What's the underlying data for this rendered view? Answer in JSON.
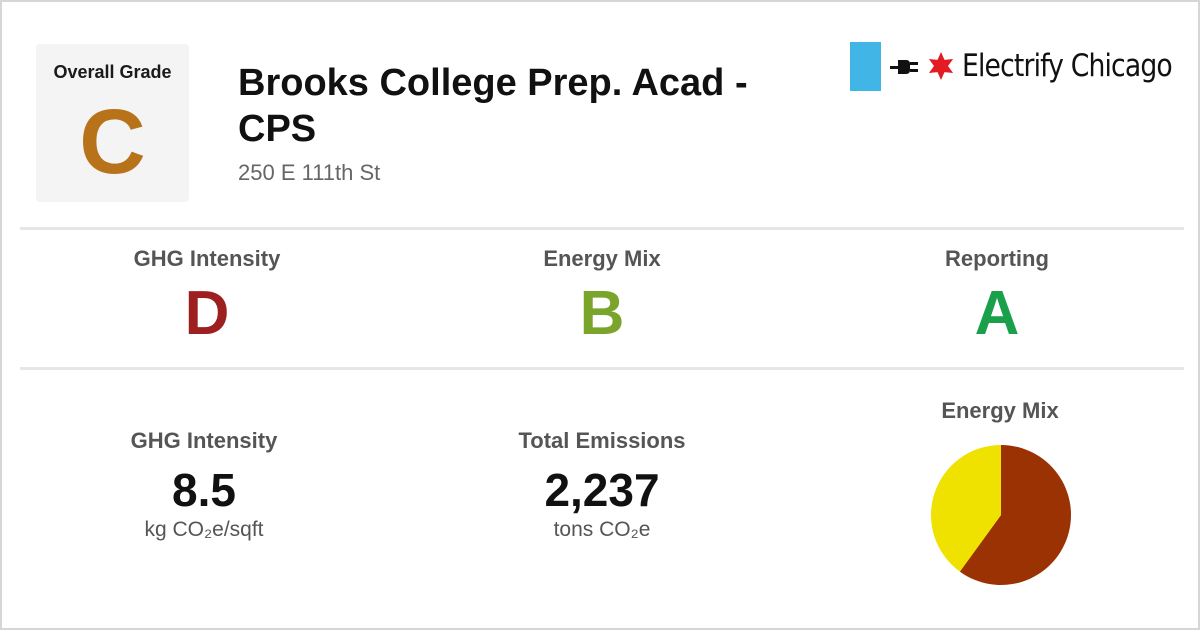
{
  "overall": {
    "label": "Overall Grade",
    "grade": "C",
    "color": "#b8721a"
  },
  "building": {
    "name": "Brooks College Prep. Acad - CPS",
    "address": "250 E 111th St"
  },
  "brand": {
    "name": "Electrify Chicago",
    "flag_color": "#41b6e6",
    "star_color": "#e31b23",
    "icons": [
      "flag-icon",
      "plug-icon",
      "star-icon"
    ]
  },
  "grades": [
    {
      "label": "GHG Intensity",
      "grade": "D",
      "color": "#9e1f1f"
    },
    {
      "label": "Energy Mix",
      "grade": "B",
      "color": "#7aa52a"
    },
    {
      "label": "Reporting",
      "grade": "A",
      "color": "#1aa04b"
    }
  ],
  "metrics": [
    {
      "label": "GHG Intensity",
      "value": "8.5",
      "unit": "kg CO₂e/sqft"
    },
    {
      "label": "Total Emissions",
      "value": "2,237",
      "unit": "tons CO₂e"
    }
  ],
  "energy_mix": {
    "label": "Energy Mix",
    "chart_data": {
      "type": "pie",
      "title": "Energy Mix",
      "slices": [
        {
          "value": 60,
          "color": "#9b3203"
        },
        {
          "value": 40,
          "color": "#efe200"
        }
      ]
    }
  }
}
